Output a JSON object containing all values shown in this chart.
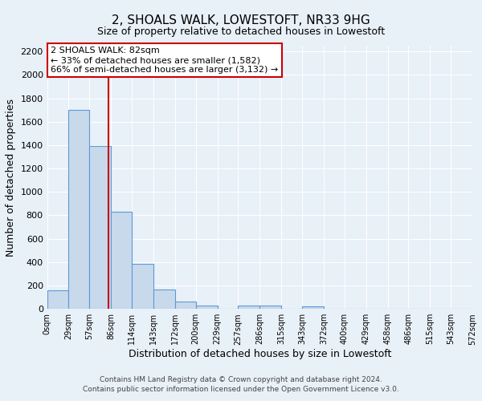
{
  "title": "2, SHOALS WALK, LOWESTOFT, NR33 9HG",
  "subtitle": "Size of property relative to detached houses in Lowestoft",
  "xlabel": "Distribution of detached houses by size in Lowestoft",
  "ylabel": "Number of detached properties",
  "bin_edges": [
    0,
    29,
    57,
    86,
    114,
    143,
    172,
    200,
    229,
    257,
    286,
    315,
    343,
    372,
    400,
    429,
    458,
    486,
    515,
    543,
    572
  ],
  "bin_labels": [
    "0sqm",
    "29sqm",
    "57sqm",
    "86sqm",
    "114sqm",
    "143sqm",
    "172sqm",
    "200sqm",
    "229sqm",
    "257sqm",
    "286sqm",
    "315sqm",
    "343sqm",
    "372sqm",
    "400sqm",
    "429sqm",
    "458sqm",
    "486sqm",
    "515sqm",
    "543sqm",
    "572sqm"
  ],
  "counts": [
    160,
    1700,
    1390,
    830,
    385,
    165,
    65,
    30,
    0,
    28,
    28,
    0,
    20,
    0,
    0,
    0,
    0,
    0,
    0,
    0
  ],
  "bar_color": "#c9d9ec",
  "bar_edge_color": "#5b9bd5",
  "property_size": 82,
  "property_label": "2 SHOALS WALK: 82sqm",
  "annotation_line1": "← 33% of detached houses are smaller (1,582)",
  "annotation_line2": "66% of semi-detached houses are larger (3,132) →",
  "vline_color": "#cc0000",
  "vline_x": 82,
  "annotation_box_color": "#ffffff",
  "annotation_box_edge": "#cc0000",
  "ylim": [
    0,
    2250
  ],
  "yticks": [
    0,
    200,
    400,
    600,
    800,
    1000,
    1200,
    1400,
    1600,
    1800,
    2000,
    2200
  ],
  "bg_color": "#e8f0f8",
  "grid_color": "#ffffff",
  "footer_line1": "Contains HM Land Registry data © Crown copyright and database right 2024.",
  "footer_line2": "Contains public sector information licensed under the Open Government Licence v3.0."
}
